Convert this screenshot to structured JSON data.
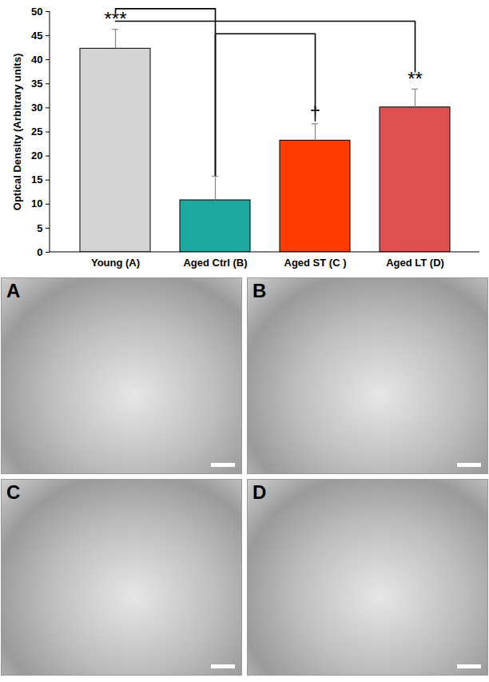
{
  "chart_data": {
    "type": "bar",
    "y_label": "Optical Density (Arbitrary units)",
    "categories": [
      "Young (A)",
      "Aged Ctrl (B)",
      "Aged ST (C )",
      "Aged LT (D)"
    ],
    "values": [
      42.3,
      10.8,
      23.2,
      30.1
    ],
    "errors": [
      4.0,
      5.0,
      3.5,
      3.8
    ],
    "colors": [
      "#d4d4d4",
      "#1ba9a0",
      "#ff3b00",
      "#e05050"
    ],
    "ylim": [
      0,
      50
    ],
    "yticks": [
      0,
      5,
      10,
      15,
      20,
      25,
      30,
      35,
      40,
      45,
      50
    ],
    "annotations": [
      {
        "category": "Young (A)",
        "text": "***"
      },
      {
        "category": "Aged ST (C )",
        "text": "†"
      },
      {
        "category": "Aged LT (D)",
        "text": "**"
      }
    ],
    "comparisons": [
      [
        "Young (A)",
        "Aged Ctrl (B)"
      ],
      [
        "Young (A)",
        "Aged LT (D)"
      ],
      [
        "Aged Ctrl (B)",
        "Aged ST (C )"
      ]
    ]
  },
  "panels": [
    "A",
    "B",
    "C",
    "D"
  ]
}
